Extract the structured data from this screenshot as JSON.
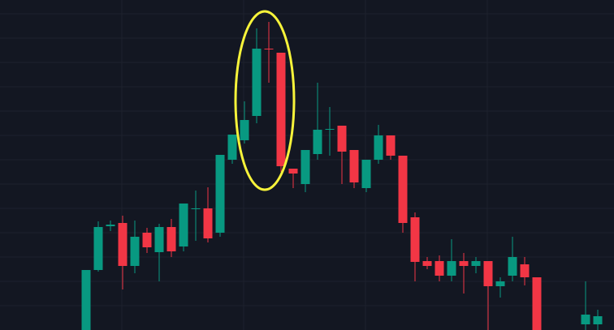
{
  "chart_data": {
    "type": "candlestick",
    "open": [
      0,
      74,
      128,
      132,
      79,
      120,
      96,
      127,
      103,
      150,
      150,
      120,
      210,
      234,
      264,
      347,
      342,
      199,
      180,
      217,
      247,
      252,
      222,
      175,
      210,
      240,
      215,
      139,
      85,
      85,
      67,
      85,
      79,
      85,
      54,
      67,
      81,
      65,
      null,
      null,
      null,
      7,
      7
    ],
    "high": [
      74,
      134,
      135,
      141,
      135,
      126,
      131,
      137,
      156,
      172,
      176,
      216,
      241,
      282,
      372,
      380,
      342,
      199,
      222,
      305,
      275,
      252,
      222,
      210,
      253,
      240,
      215,
      145,
      90,
      92,
      112,
      95,
      90,
      85,
      65,
      115,
      90,
      65,
      null,
      null,
      null,
      60,
      25
    ],
    "low": [
      0,
      72,
      122,
      50,
      70,
      95,
      60,
      90,
      97,
      110,
      108,
      115,
      205,
      230,
      255,
      305,
      195,
      175,
      170,
      210,
      215,
      180,
      175,
      170,
      205,
      210,
      120,
      60,
      75,
      60,
      60,
      45,
      70,
      0,
      40,
      60,
      55,
      0,
      null,
      null,
      null,
      0,
      0
    ],
    "close": [
      74,
      127,
      130,
      79,
      115,
      102,
      127,
      97,
      156,
      150,
      113,
      216,
      241,
      259,
      347,
      346,
      202,
      193,
      222,
      247,
      248,
      220,
      182,
      210,
      240,
      215,
      132,
      84,
      79,
      67,
      85,
      79,
      85,
      54,
      60,
      90,
      65,
      0,
      null,
      null,
      null,
      19,
      17
    ],
    "up_color": "#089981",
    "down_color": "#f23645",
    "ylim": [
      0,
      407
    ],
    "yticks": [
      30,
      60,
      90,
      120,
      150,
      180,
      210,
      240,
      270,
      300,
      330,
      360,
      390
    ],
    "grid": true
  }
}
